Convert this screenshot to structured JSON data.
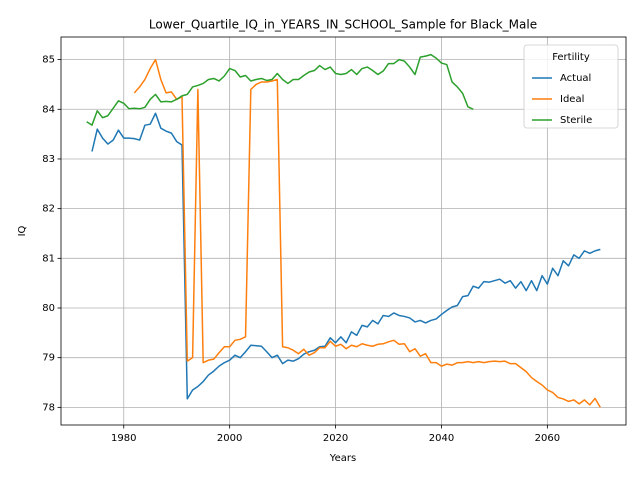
{
  "chart_data": {
    "type": "line",
    "title": "Lower_Quartile_IQ_in_YEARS_IN_SCHOOL_Sample for Black_Male",
    "x_label": "Years",
    "y_label": "IQ",
    "x": [
      1973,
      1974,
      1975,
      1976,
      1977,
      1978,
      1979,
      1980,
      1981,
      1982,
      1983,
      1984,
      1985,
      1986,
      1987,
      1988,
      1989,
      1990,
      1991,
      1992,
      1993,
      1994,
      1995,
      1996,
      1997,
      1998,
      1999,
      2000,
      2001,
      2002,
      2003,
      2004,
      2005,
      2006,
      2007,
      2008,
      2009,
      2010,
      2011,
      2012,
      2013,
      2014,
      2015,
      2016,
      2017,
      2018,
      2019,
      2020,
      2021,
      2022,
      2023,
      2024,
      2025,
      2026,
      2027,
      2028,
      2029,
      2030,
      2031,
      2032,
      2033,
      2034,
      2035,
      2036,
      2037,
      2038,
      2039,
      2040,
      2041,
      2042,
      2043,
      2044,
      2045,
      2046,
      2047,
      2048,
      2049,
      2050,
      2051,
      2052,
      2053,
      2054,
      2055,
      2056,
      2057,
      2058,
      2059,
      2060,
      2061,
      2062,
      2063,
      2064,
      2065,
      2066,
      2067,
      2068,
      2069,
      2070
    ],
    "series": [
      {
        "name": "Actual",
        "color": "#1f77b4",
        "values": [
          null,
          83.15,
          83.6,
          83.42,
          83.3,
          83.38,
          83.58,
          83.42,
          83.42,
          83.41,
          83.38,
          83.68,
          83.7,
          83.92,
          83.62,
          83.56,
          83.52,
          83.35,
          83.28,
          78.17,
          78.35,
          78.42,
          78.52,
          78.65,
          78.73,
          78.83,
          78.9,
          78.95,
          79.05,
          79.0,
          79.12,
          79.25,
          79.24,
          79.23,
          79.12,
          79.0,
          79.05,
          78.88,
          78.95,
          78.93,
          78.98,
          79.07,
          79.12,
          79.15,
          79.22,
          79.23,
          79.4,
          79.3,
          79.42,
          79.3,
          79.52,
          79.45,
          79.65,
          79.62,
          79.75,
          79.68,
          79.85,
          79.83,
          79.9,
          79.85,
          79.83,
          79.8,
          79.72,
          79.75,
          79.7,
          79.75,
          79.78,
          79.87,
          79.95,
          80.02,
          80.05,
          80.23,
          80.25,
          80.44,
          80.4,
          80.53,
          80.52,
          80.55,
          80.58,
          80.5,
          80.55,
          80.4,
          80.53,
          80.35,
          80.55,
          80.35,
          80.65,
          80.48,
          80.8,
          80.65,
          80.95,
          80.85,
          81.07,
          81.0,
          81.15,
          81.1,
          81.15,
          81.18
        ]
      },
      {
        "name": "Ideal",
        "color": "#ff7f0e",
        "values": [
          null,
          null,
          null,
          null,
          null,
          null,
          null,
          null,
          null,
          84.33,
          84.45,
          84.6,
          84.82,
          85.0,
          84.6,
          84.33,
          84.35,
          84.2,
          84.25,
          78.93,
          79.0,
          84.4,
          78.9,
          78.95,
          78.97,
          79.1,
          79.22,
          79.22,
          79.35,
          79.37,
          79.42,
          84.4,
          84.5,
          84.55,
          84.55,
          84.57,
          84.6,
          79.22,
          79.2,
          79.15,
          79.08,
          79.17,
          79.05,
          79.1,
          79.2,
          79.2,
          79.33,
          79.23,
          79.27,
          79.18,
          79.25,
          79.22,
          79.28,
          79.25,
          79.23,
          79.27,
          79.28,
          79.32,
          79.35,
          79.27,
          79.28,
          79.12,
          79.18,
          79.03,
          79.08,
          78.9,
          78.9,
          78.83,
          78.87,
          78.85,
          78.9,
          78.9,
          78.92,
          78.9,
          78.92,
          78.9,
          78.92,
          78.93,
          78.92,
          78.93,
          78.88,
          78.88,
          78.8,
          78.72,
          78.6,
          78.52,
          78.45,
          78.35,
          78.3,
          78.2,
          78.17,
          78.12,
          78.15,
          78.07,
          78.15,
          78.05,
          78.18,
          78.0
        ]
      },
      {
        "name": "Sterile",
        "color": "#2ca02c",
        "values": [
          83.75,
          83.68,
          83.97,
          83.83,
          83.87,
          84.02,
          84.17,
          84.12,
          84.01,
          84.02,
          84.01,
          84.04,
          84.2,
          84.3,
          84.15,
          84.16,
          84.15,
          84.2,
          84.27,
          84.3,
          84.45,
          84.48,
          84.52,
          84.6,
          84.62,
          84.57,
          84.67,
          84.82,
          84.78,
          84.65,
          84.68,
          84.57,
          84.6,
          84.62,
          84.58,
          84.6,
          84.72,
          84.6,
          84.52,
          84.6,
          84.6,
          84.68,
          84.75,
          84.78,
          84.88,
          84.8,
          84.85,
          84.72,
          84.7,
          84.72,
          84.8,
          84.7,
          84.82,
          84.85,
          84.78,
          84.7,
          84.77,
          84.92,
          84.92,
          85.0,
          84.97,
          84.85,
          84.7,
          85.05,
          85.07,
          85.1,
          85.03,
          84.93,
          84.9,
          84.55,
          84.45,
          84.32,
          84.05,
          84.0,
          null,
          null,
          null,
          null,
          null,
          null,
          null,
          null,
          null,
          null,
          null,
          null,
          null,
          null,
          null,
          null,
          null,
          null,
          null,
          null,
          null,
          null,
          null,
          null
        ]
      }
    ],
    "legend_title": "Fertility",
    "legend": "upper right",
    "grid": true,
    "xlim": [
      1968.15,
      2074.85
    ],
    "xticks": [
      1980,
      2000,
      2020,
      2040,
      2060
    ],
    "ylim": [
      77.645,
      85.455
    ],
    "yticks": [
      78,
      79,
      80,
      81,
      82,
      83,
      84,
      85
    ]
  }
}
